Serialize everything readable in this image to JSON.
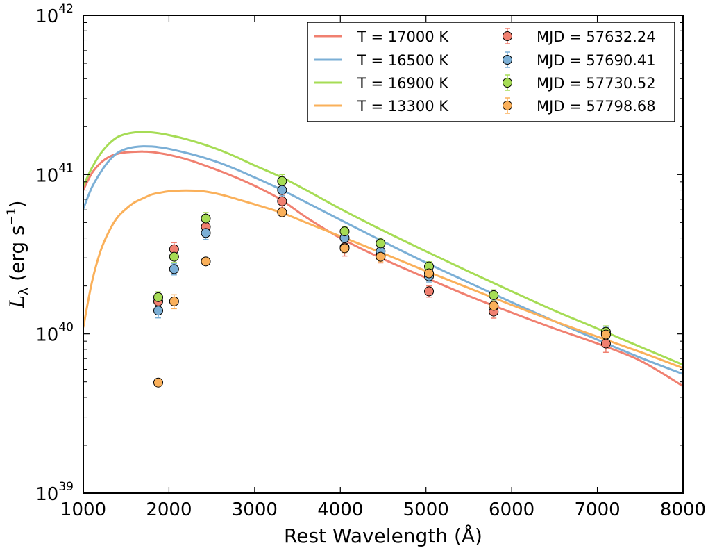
{
  "chart_data": {
    "type": "line+scatter",
    "xlabel": "Rest Wavelength (Å)",
    "ylabel": {
      "symbol": "L",
      "subscript": "λ",
      "unit_text": " (erg s",
      "unit_exp": "−1",
      "unit_close": ")"
    },
    "xlim": [
      1000,
      8000
    ],
    "ylim_log10": [
      39,
      42
    ],
    "yscale": "log",
    "x_ticks": [
      1000,
      2000,
      3000,
      4000,
      5000,
      6000,
      7000,
      8000
    ],
    "x_tick_labels": [
      "1000",
      "2000",
      "3000",
      "4000",
      "5000",
      "6000",
      "7000",
      "8000"
    ],
    "y_ticks": [
      {
        "base": "10",
        "exp": "39"
      },
      {
        "base": "10",
        "exp": "40"
      },
      {
        "base": "10",
        "exp": "41"
      },
      {
        "base": "10",
        "exp": "42"
      }
    ],
    "legend_position": "top-right",
    "curves": [
      {
        "label": "T = 17000 K",
        "color": "#f08070",
        "temperature": 17000,
        "points": [
          [
            1000,
            8e+40
          ],
          [
            1100,
            1.02e+41
          ],
          [
            1200,
            1.18e+41
          ],
          [
            1300,
            1.29e+41
          ],
          [
            1400,
            1.35e+41
          ],
          [
            1500,
            1.38e+41
          ],
          [
            1600,
            1.39e+41
          ],
          [
            1700,
            1.395e+41
          ],
          [
            1800,
            1.385e+41
          ],
          [
            1900,
            1.36e+41
          ],
          [
            2000,
            1.33e+41
          ],
          [
            2200,
            1.25e+41
          ],
          [
            2400,
            1.15e+41
          ],
          [
            2600,
            1.05e+41
          ],
          [
            2800,
            9.5e+40
          ],
          [
            3000,
            8.5e+40
          ],
          [
            3300,
            7e+40
          ],
          [
            3600,
            5.4e+40
          ],
          [
            4000,
            4e+40
          ],
          [
            4500,
            2.95e+40
          ],
          [
            5000,
            2.25e+40
          ],
          [
            5500,
            1.73e+40
          ],
          [
            6000,
            1.36e+40
          ],
          [
            6500,
            1.08e+40
          ],
          [
            7000,
            8.7e+39
          ],
          [
            7500,
            6.8e+39
          ],
          [
            8000,
            4.7e+39
          ]
        ]
      },
      {
        "label": "T = 16500 K",
        "color": "#7bafd6",
        "temperature": 16500,
        "points": [
          [
            1000,
            6.1e+40
          ],
          [
            1100,
            8.3e+40
          ],
          [
            1200,
            1.03e+41
          ],
          [
            1300,
            1.22e+41
          ],
          [
            1400,
            1.37e+41
          ],
          [
            1500,
            1.45e+41
          ],
          [
            1600,
            1.49e+41
          ],
          [
            1700,
            1.505e+41
          ],
          [
            1800,
            1.5e+41
          ],
          [
            1900,
            1.48e+41
          ],
          [
            2000,
            1.45e+41
          ],
          [
            2200,
            1.37e+41
          ],
          [
            2400,
            1.28e+41
          ],
          [
            2600,
            1.18e+41
          ],
          [
            2800,
            1.07e+41
          ],
          [
            3000,
            9.6e+40
          ],
          [
            3300,
            8.1e+40
          ],
          [
            3600,
            6.7e+40
          ],
          [
            4000,
            5.2e+40
          ],
          [
            4500,
            3.8e+40
          ],
          [
            5000,
            2.8e+40
          ],
          [
            5500,
            2.1e+40
          ],
          [
            6000,
            1.58e+40
          ],
          [
            6500,
            1.2e+40
          ],
          [
            7000,
            9.2e+39
          ],
          [
            7500,
            7.1e+39
          ],
          [
            8000,
            5.6e+39
          ]
        ]
      },
      {
        "label": "T = 16900 K",
        "color": "#a6dc55",
        "temperature": 16900,
        "points": [
          [
            1000,
            8.5e+40
          ],
          [
            1100,
            1.1e+41
          ],
          [
            1200,
            1.35e+41
          ],
          [
            1300,
            1.56e+41
          ],
          [
            1400,
            1.72e+41
          ],
          [
            1500,
            1.8e+41
          ],
          [
            1600,
            1.84e+41
          ],
          [
            1700,
            1.85e+41
          ],
          [
            1800,
            1.84e+41
          ],
          [
            1900,
            1.81e+41
          ],
          [
            2000,
            1.77e+41
          ],
          [
            2200,
            1.67e+41
          ],
          [
            2400,
            1.55e+41
          ],
          [
            2600,
            1.42e+41
          ],
          [
            2800,
            1.28e+41
          ],
          [
            3000,
            1.14e+41
          ],
          [
            3300,
            9.7e+40
          ],
          [
            3600,
            8e+40
          ],
          [
            4000,
            6.1e+40
          ],
          [
            4500,
            4.45e+40
          ],
          [
            5000,
            3.3e+40
          ],
          [
            5500,
            2.46e+40
          ],
          [
            6000,
            1.85e+40
          ],
          [
            6500,
            1.4e+40
          ],
          [
            7000,
            1.08e+40
          ],
          [
            7500,
            8.3e+39
          ],
          [
            8000,
            6.4e+39
          ]
        ]
      },
      {
        "label": "T = 13300 K",
        "color": "#fab05a",
        "temperature": 13300,
        "points": [
          [
            1000,
            1.1e+40
          ],
          [
            1100,
            2.1e+40
          ],
          [
            1200,
            3.3e+40
          ],
          [
            1300,
            4.4e+40
          ],
          [
            1400,
            5.4e+40
          ],
          [
            1500,
            6.1e+40
          ],
          [
            1600,
            6.7e+40
          ],
          [
            1700,
            7.1e+40
          ],
          [
            1800,
            7.5e+40
          ],
          [
            1900,
            7.7e+40
          ],
          [
            2000,
            7.85e+40
          ],
          [
            2200,
            7.95e+40
          ],
          [
            2400,
            7.85e+40
          ],
          [
            2600,
            7.5e+40
          ],
          [
            2800,
            7e+40
          ],
          [
            3000,
            6.5e+40
          ],
          [
            3300,
            5.8e+40
          ],
          [
            3600,
            5e+40
          ],
          [
            4000,
            4.1e+40
          ],
          [
            4500,
            3.2e+40
          ],
          [
            5000,
            2.48e+40
          ],
          [
            5500,
            1.94e+40
          ],
          [
            6000,
            1.52e+40
          ],
          [
            6500,
            1.2e+40
          ],
          [
            7000,
            9.6e+39
          ],
          [
            7500,
            7.7e+39
          ],
          [
            8000,
            6.1e+39
          ]
        ]
      }
    ],
    "observations": [
      {
        "label": "MJD = 57632.24",
        "mjd": 57632.24,
        "color": "#f08070",
        "points": [
          [
            1875,
            1.6e+40
          ],
          [
            2060,
            3.4e+40
          ],
          [
            2430,
            4.7e+40
          ],
          [
            3320,
            6.8e+40
          ],
          [
            4050,
            3.5e+40
          ],
          [
            4470,
            3.1e+40
          ],
          [
            5035,
            1.85e+40
          ],
          [
            5790,
            1.38e+40
          ],
          [
            7100,
            8.7e+39
          ]
        ],
        "rel_err": [
          0.08,
          0.1,
          0.09,
          0.09,
          0.12,
          0.1,
          0.08,
          0.09,
          0.12
        ]
      },
      {
        "label": "MJD = 57690.41",
        "mjd": 57690.41,
        "color": "#7bafd6",
        "points": [
          [
            1875,
            1.4e+40
          ],
          [
            2060,
            2.55e+40
          ],
          [
            2430,
            4.3e+40
          ],
          [
            3320,
            8e+40
          ],
          [
            4050,
            4e+40
          ],
          [
            4470,
            3.3e+40
          ],
          [
            5035,
            2.3e+40
          ],
          [
            5790,
            1.5e+40
          ],
          [
            7100,
            1e+40
          ]
        ],
        "rel_err": [
          0.1,
          0.08,
          0.09,
          0.08,
          0.08,
          0.08,
          0.08,
          0.08,
          0.1
        ]
      },
      {
        "label": "MJD = 57730.52",
        "mjd": 57730.52,
        "color": "#a6dc55",
        "points": [
          [
            1875,
            1.7e+40
          ],
          [
            2060,
            3.05e+40
          ],
          [
            2430,
            5.3e+40
          ],
          [
            3320,
            9.1e+40
          ],
          [
            4050,
            4.4e+40
          ],
          [
            4470,
            3.7e+40
          ],
          [
            5035,
            2.65e+40
          ],
          [
            5790,
            1.75e+40
          ],
          [
            7100,
            1.03e+40
          ]
        ],
        "rel_err": [
          0.08,
          0.08,
          0.09,
          0.1,
          0.07,
          0.08,
          0.07,
          0.08,
          0.09
        ]
      },
      {
        "label": "MJD = 57798.68",
        "mjd": 57798.68,
        "color": "#fab05a",
        "points": [
          [
            1875,
            4.95e+39
          ],
          [
            2060,
            1.6e+40
          ],
          [
            2430,
            2.85e+40
          ],
          [
            3320,
            5.8e+40
          ],
          [
            4050,
            3.45e+40
          ],
          [
            4470,
            3.05e+40
          ],
          [
            5035,
            2.4e+40
          ],
          [
            5790,
            1.5e+40
          ],
          [
            7100,
            9.9e+39
          ]
        ],
        "rel_err": [
          0.03,
          0.1,
          0.03,
          0.05,
          0.06,
          0.07,
          0.06,
          0.07,
          0.08
        ]
      }
    ]
  }
}
